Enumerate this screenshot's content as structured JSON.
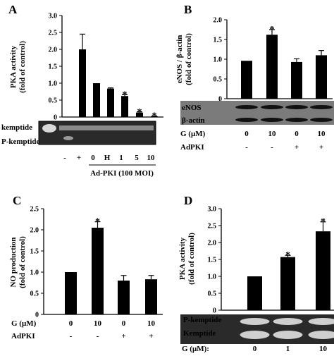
{
  "chart_data": [
    {
      "panel": "A",
      "type": "bar",
      "ylabel": [
        "PKA activity",
        "(fold of control)"
      ],
      "ylim": [
        0,
        3.0
      ],
      "yticks": [
        "0",
        "0.5",
        "1.0",
        "1.5",
        "2.0",
        "2.5",
        "3.0"
      ],
      "categories": [
        "-",
        "+",
        "0",
        "H",
        "1",
        "5",
        "10"
      ],
      "values": [
        0,
        2.0,
        1.0,
        0.84,
        0.62,
        0.13,
        0.02
      ],
      "errors": [
        0,
        0.45,
        0,
        0.02,
        0.04,
        0.02,
        0.01
      ],
      "significant": [
        false,
        false,
        false,
        false,
        true,
        true,
        true
      ],
      "blot_rows": [
        "kemptide",
        "P-kemptide"
      ],
      "group_label": "Ad-PKI (100 MOI)"
    },
    {
      "panel": "B",
      "type": "bar",
      "ylabel": [
        "eNOS / β-actin",
        "(fold of control)"
      ],
      "ylim": [
        0,
        2.0
      ],
      "yticks": [
        "0",
        "0.5",
        "1.0",
        "1.5",
        "2.0"
      ],
      "values": [
        0.96,
        1.62,
        0.93,
        1.1
      ],
      "errors": [
        0,
        0.13,
        0.08,
        0.12
      ],
      "significant": [
        false,
        true,
        false,
        false
      ],
      "blot_rows": [
        "eNOS",
        "β-actin"
      ],
      "row_labels": [
        "G (μM)",
        "AdPKI"
      ],
      "rows": [
        [
          "0",
          "10",
          "0",
          "10"
        ],
        [
          "-",
          "-",
          "+",
          "+"
        ]
      ]
    },
    {
      "panel": "C",
      "type": "bar",
      "ylabel": [
        "NO production",
        "(fold of control)"
      ],
      "ylim": [
        0,
        2.5
      ],
      "yticks": [
        "0",
        "0.5",
        "1.0",
        "1.5",
        "2.0",
        "2.5"
      ],
      "values": [
        1.0,
        2.05,
        0.8,
        0.83
      ],
      "errors": [
        0,
        0.14,
        0.12,
        0.09
      ],
      "significant": [
        false,
        true,
        false,
        false
      ],
      "row_labels": [
        "G (μM)",
        "AdPKI"
      ],
      "rows": [
        [
          "0",
          "10",
          "0",
          "10"
        ],
        [
          "-",
          "-",
          "+",
          "+"
        ]
      ]
    },
    {
      "panel": "D",
      "type": "bar",
      "ylabel": [
        "PKA activity",
        "(fold of control)"
      ],
      "ylim": [
        0,
        3.0
      ],
      "yticks": [
        "0",
        "0.5",
        "1.0",
        "1.5",
        "2.0",
        "2.5",
        "3.0"
      ],
      "values": [
        1.0,
        1.57,
        2.33
      ],
      "errors": [
        0,
        0.05,
        0.28
      ],
      "significant": [
        false,
        true,
        true
      ],
      "blot_rows": [
        "P-kemptide",
        "Kemptide"
      ],
      "row_labels": [
        "G (μM):"
      ],
      "rows": [
        [
          "0",
          "1",
          "10"
        ]
      ]
    }
  ],
  "significance_marker": "*",
  "bar_color": "#000000",
  "panel_letters": [
    "A",
    "B",
    "C",
    "D"
  ]
}
